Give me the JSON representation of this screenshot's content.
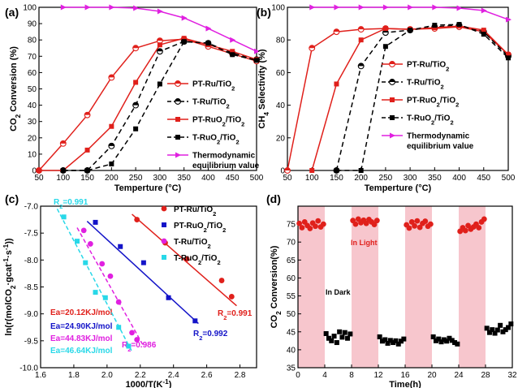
{
  "chart_data": [
    {
      "panel": "(a)",
      "type": "line",
      "xlabel": "Temperture (°C)",
      "ylabel": "CO2 Conversion (%)",
      "xlim": [
        50,
        500
      ],
      "ylim": [
        0,
        100
      ],
      "xticks": [
        50,
        100,
        150,
        200,
        250,
        300,
        350,
        400,
        450,
        500
      ],
      "yticks": [
        0,
        10,
        20,
        30,
        40,
        50,
        60,
        70,
        80,
        90,
        100
      ],
      "legend": "right",
      "series": [
        {
          "name": "PT-Ru/TiO2",
          "style": "solid",
          "marker": "open-circle-half",
          "color": "#e0201b",
          "x": [
            50,
            100,
            150,
            200,
            250,
            300,
            350,
            400,
            450,
            500
          ],
          "y": [
            0,
            16.5,
            34,
            57,
            75,
            79.5,
            80.5,
            76,
            71.5,
            67
          ]
        },
        {
          "name": "T-Ru/TiO2",
          "style": "dashed",
          "marker": "open-circle-half",
          "color": "#000000",
          "x": [
            100,
            150,
            200,
            250,
            300,
            350,
            400,
            450,
            500
          ],
          "y": [
            0,
            0,
            15,
            40,
            73,
            79,
            78,
            72,
            68
          ]
        },
        {
          "name": "PT-RuO2/TiO2",
          "style": "solid",
          "marker": "square",
          "color": "#e0201b",
          "x": [
            50,
            100,
            150,
            200,
            250,
            300,
            350,
            400,
            450,
            500
          ],
          "y": [
            0,
            0,
            12.5,
            27,
            54,
            77,
            81,
            77,
            73,
            68
          ]
        },
        {
          "name": "T-RuO2/TiO2",
          "style": "dashed",
          "marker": "square",
          "color": "#000000",
          "x": [
            100,
            150,
            200,
            250,
            300,
            350,
            400,
            450,
            500
          ],
          "y": [
            0,
            0,
            4,
            25.5,
            53,
            79,
            78,
            71,
            67.5
          ]
        },
        {
          "name": "Thermodynamic equilibrium value",
          "style": "solid",
          "marker": "triangle-right",
          "color": "#e020e0",
          "x": [
            100,
            150,
            200,
            250,
            300,
            350,
            400,
            450,
            500
          ],
          "y": [
            100,
            100,
            100,
            99.5,
            97.5,
            93.5,
            87,
            80,
            73
          ]
        }
      ]
    },
    {
      "panel": "(b)",
      "type": "line",
      "xlabel": "Temperture (°C)",
      "ylabel": "CH4 Selectivity (%)",
      "xlim": [
        50,
        500
      ],
      "ylim": [
        0,
        100
      ],
      "xticks": [
        50,
        100,
        150,
        200,
        250,
        300,
        350,
        400,
        450,
        500
      ],
      "yticks": [
        0,
        20,
        40,
        60,
        80,
        100
      ],
      "legend": "right",
      "series": [
        {
          "name": "PT-Ru/TiO2",
          "style": "solid",
          "marker": "open-circle-half",
          "color": "#e0201b",
          "x": [
            50,
            100,
            150,
            200,
            250,
            300,
            350,
            400,
            450,
            500
          ],
          "y": [
            0,
            75,
            85,
            86.5,
            87,
            86.5,
            87,
            88,
            85,
            71
          ]
        },
        {
          "name": "T-Ru/TiO2",
          "style": "dashed",
          "marker": "open-circle-half",
          "color": "#000000",
          "x": [
            150,
            200,
            250,
            300,
            350,
            400,
            450,
            500
          ],
          "y": [
            0,
            64,
            84.5,
            86,
            88,
            89,
            85,
            70
          ]
        },
        {
          "name": "PT-RuO2/TiO2",
          "style": "solid",
          "marker": "square",
          "color": "#e0201b",
          "x": [
            100,
            150,
            200,
            250,
            300,
            350,
            400,
            450,
            500
          ],
          "y": [
            0,
            53,
            80,
            87,
            86.5,
            87.5,
            88.5,
            86,
            71
          ]
        },
        {
          "name": "T-RuO2/TiO2",
          "style": "dashed",
          "marker": "square",
          "color": "#000000",
          "x": [
            150,
            200,
            250,
            300,
            350,
            400,
            450,
            500
          ],
          "y": [
            0,
            0,
            76,
            86,
            89,
            89.5,
            83.5,
            69
          ]
        },
        {
          "name": "Thermodynamic equilibrium value",
          "style": "solid",
          "marker": "triangle-right",
          "color": "#e020e0",
          "x": [
            100,
            150,
            200,
            250,
            300,
            350,
            400,
            450,
            500
          ],
          "y": [
            100,
            100,
            100,
            100,
            100,
            100,
            99.5,
            98,
            92.5
          ]
        }
      ]
    },
    {
      "panel": "(c)",
      "type": "scatter",
      "xlabel": "1000/T(K-1)",
      "ylabel": "ln(r(molCO2·gcat-1·s-1))",
      "xlim": [
        1.6,
        2.9
      ],
      "ylim": [
        -10,
        -7
      ],
      "xticks": [
        1.6,
        1.8,
        2.0,
        2.2,
        2.4,
        2.6,
        2.8
      ],
      "yticks": [
        -10.0,
        -9.5,
        -9.0,
        -8.5,
        -8.0,
        -7.5,
        -7.0
      ],
      "legend": "top-right",
      "series": [
        {
          "name": "PT-Ru/TiO2",
          "marker": "circle",
          "color": "#e0201b",
          "x": [
            2.18,
            2.35,
            2.48,
            2.69,
            2.75
          ],
          "y": [
            -7.25,
            -7.68,
            -7.98,
            -8.38,
            -8.68
          ],
          "fit": [
            [
              2.15,
              -7.15
            ],
            [
              2.78,
              -8.85
            ]
          ],
          "r2": "R2=0.991",
          "ea": "Ea=20.12KJ/mol"
        },
        {
          "name": "PT-RuO2/TiO2",
          "marker": "square",
          "color": "#1414c8",
          "x": [
            1.93,
            2.08,
            2.22,
            2.37,
            2.53
          ],
          "y": [
            -7.3,
            -7.75,
            -8.05,
            -8.7,
            -9.13
          ],
          "fit": [
            [
              1.88,
              -7.28
            ],
            [
              2.55,
              -9.18
            ]
          ],
          "r2": "R2=0.992",
          "ea": "Ea=24.90KJ/mol"
        },
        {
          "name": "T-Ru/TiO2",
          "marker": "circle",
          "color": "#e020e0",
          "x": [
            1.86,
            1.9,
            1.97,
            2.02,
            2.07,
            2.15,
            2.18
          ],
          "y": [
            -7.45,
            -7.7,
            -8.07,
            -8.3,
            -8.78,
            -9.35,
            -9.48
          ],
          "fit": [
            [
              1.82,
              -7.4
            ],
            [
              2.22,
              -9.6
            ]
          ],
          "r2": "R2=0.986",
          "ea": "Ea=44.83KJ/mol"
        },
        {
          "name": "T-RuO2/TiO2",
          "marker": "square",
          "color": "#28d8e8",
          "x": [
            1.74,
            1.82,
            1.87,
            1.93,
            1.99,
            2.07,
            2.13
          ],
          "y": [
            -7.2,
            -7.65,
            -8.05,
            -8.6,
            -8.7,
            -9.25,
            -9.6
          ],
          "fit": [
            [
              1.7,
              -7.05
            ],
            [
              2.15,
              -9.7
            ]
          ],
          "r2": "R2=0.991",
          "ea": "Ea=46.64KJ/mol"
        }
      ]
    },
    {
      "panel": "(d)",
      "type": "scatter",
      "xlabel": "Time(h)",
      "ylabel": "CO2 Conversion(%)",
      "xlim": [
        0,
        32
      ],
      "ylim": [
        35,
        80
      ],
      "xticks": [
        0,
        4,
        8,
        12,
        16,
        20,
        24,
        28,
        32
      ],
      "yticks": [
        35,
        40,
        45,
        50,
        55,
        60,
        65,
        70,
        75
      ],
      "light_intervals": [
        [
          0,
          4
        ],
        [
          8,
          12
        ],
        [
          16,
          20
        ],
        [
          24,
          28
        ]
      ],
      "annotations": [
        "In Light",
        "In Dark"
      ],
      "series": [
        {
          "name": "In Light",
          "marker": "circle",
          "color": "#e0201b",
          "x": [
            0.2,
            0.6,
            1.0,
            1.4,
            1.8,
            2.2,
            2.6,
            3.0,
            3.4,
            3.8,
            8.2,
            8.6,
            9.0,
            9.4,
            9.8,
            10.2,
            10.6,
            11.0,
            11.4,
            11.8,
            16.2,
            16.6,
            17.0,
            17.4,
            17.8,
            18.2,
            18.6,
            19.0,
            19.4,
            19.8,
            24.2,
            24.6,
            25.0,
            25.4,
            25.8,
            26.2,
            26.6,
            27.0,
            27.4,
            27.8
          ],
          "y": [
            75.2,
            74.0,
            75.6,
            74.6,
            73.8,
            75.3,
            74.4,
            75.9,
            74.2,
            75.0,
            76.0,
            75.0,
            76.4,
            75.4,
            76.1,
            75.2,
            76.3,
            75.6,
            74.9,
            76.0,
            74.8,
            73.9,
            75.6,
            74.5,
            75.9,
            74.1,
            75.2,
            75.8,
            74.4,
            75.0,
            73.0,
            74.0,
            73.2,
            74.6,
            73.6,
            74.2,
            75.0,
            74.0,
            75.6,
            76.4
          ]
        },
        {
          "name": "In Dark",
          "marker": "square",
          "color": "#000000",
          "x": [
            4.2,
            4.6,
            5.0,
            5.4,
            5.8,
            6.2,
            6.6,
            7.0,
            7.4,
            7.8,
            12.2,
            12.6,
            13.0,
            13.4,
            13.8,
            14.2,
            14.6,
            15.0,
            15.4,
            15.8,
            20.2,
            20.6,
            21.0,
            21.4,
            21.8,
            22.2,
            22.6,
            23.0,
            23.4,
            23.8,
            28.2,
            28.6,
            29.0,
            29.4,
            29.8,
            30.2,
            30.6,
            31.0,
            31.4,
            31.8
          ],
          "y": [
            44.5,
            43.2,
            42.5,
            43.8,
            42.0,
            45.0,
            43.5,
            44.8,
            43.2,
            44.4,
            43.6,
            42.4,
            42.8,
            41.8,
            42.6,
            42.0,
            42.5,
            41.6,
            42.4,
            43.0,
            43.6,
            42.5,
            43.0,
            42.2,
            42.8,
            42.4,
            43.2,
            42.6,
            42.0,
            41.6,
            46.0,
            44.8,
            45.6,
            44.6,
            45.5,
            46.8,
            45.0,
            45.6,
            46.2,
            47.2
          ]
        }
      ]
    }
  ]
}
